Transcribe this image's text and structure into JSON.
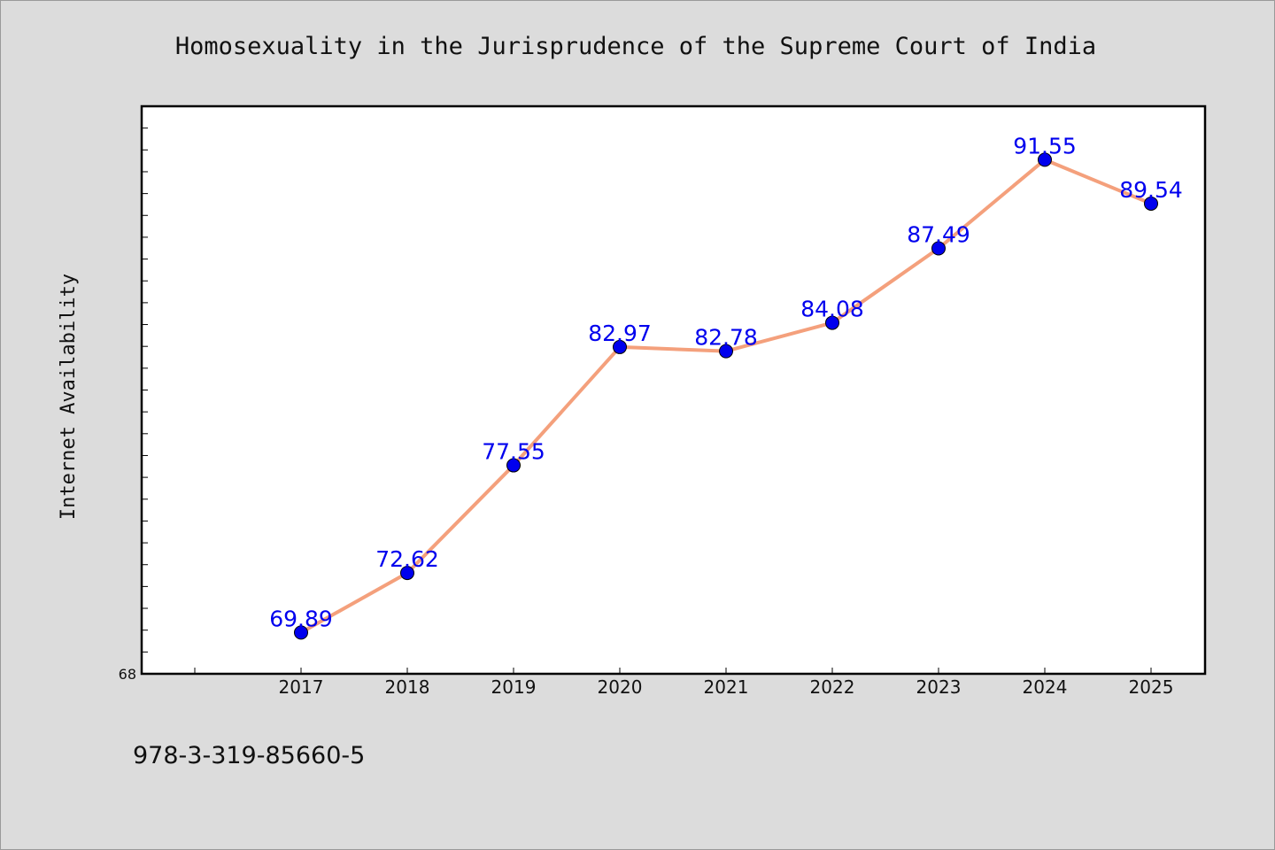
{
  "chart_data": {
    "type": "line",
    "title": "Homosexuality in the Jurisprudence of the Supreme Court of India",
    "xlabel": "",
    "ylabel": "Internet Availability",
    "categories": [
      "2017",
      "2018",
      "2019",
      "2020",
      "2021",
      "2022",
      "2023",
      "2024",
      "2025"
    ],
    "series": [
      {
        "values": [
          69.89,
          72.62,
          77.55,
          82.97,
          82.78,
          84.08,
          87.49,
          91.55,
          89.54
        ],
        "data_labels": [
          "69.89",
          "72.62",
          "77.55",
          "82.97",
          "82.78",
          "84.08",
          "87.49",
          "91.55",
          "89.54"
        ]
      }
    ],
    "ylim": [
      68,
      94
    ],
    "ytick_labels": [
      "68"
    ],
    "grid": false,
    "legend": "none",
    "colors": {
      "line": "#f4a07c",
      "marker": "#0000ee",
      "data_label": "#0000ee",
      "plot_background": "#ffffff",
      "page_background": "#dcdcdc"
    }
  },
  "footer": {
    "isbn": "978-3-319-85660-5"
  }
}
